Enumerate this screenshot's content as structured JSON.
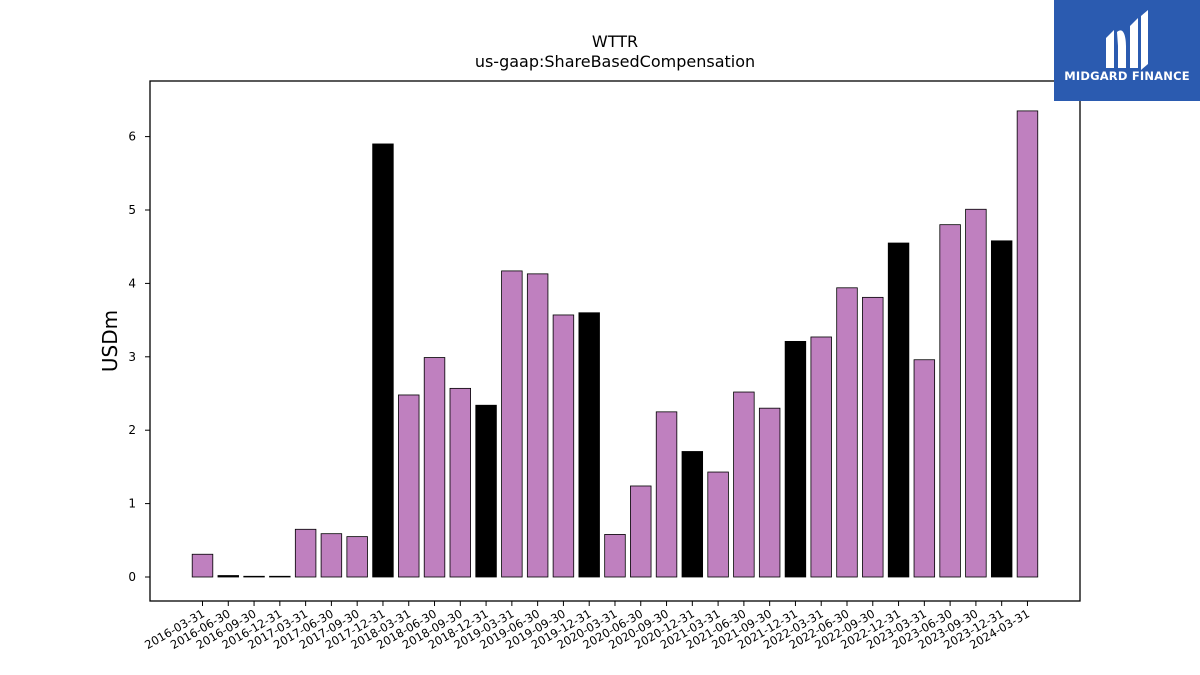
{
  "chart_data": {
    "type": "bar",
    "title": "WTTR",
    "subtitle": "us-gaap:ShareBasedCompensation",
    "xlabel": "",
    "ylabel": "USDm",
    "ylim": [
      -0.32,
      6.67
    ],
    "yticks": [
      0,
      1,
      2,
      3,
      4,
      5,
      6
    ],
    "grid": false,
    "colors": {
      "quarter": "#bf80bf",
      "year_end": "#000000",
      "edge": "#000000"
    },
    "categories": [
      "2016-03-31",
      "2016-06-30",
      "2016-09-30",
      "2016-12-31",
      "2017-03-31",
      "2017-06-30",
      "2017-09-30",
      "2017-12-31",
      "2018-03-31",
      "2018-06-30",
      "2018-09-30",
      "2018-12-31",
      "2019-03-31",
      "2019-06-30",
      "2019-09-30",
      "2019-12-31",
      "2020-03-31",
      "2020-06-30",
      "2020-09-30",
      "2020-12-31",
      "2021-03-31",
      "2021-06-30",
      "2021-09-30",
      "2021-12-31",
      "2022-03-31",
      "2022-06-30",
      "2022-09-30",
      "2022-12-31",
      "2023-03-31",
      "2023-06-30",
      "2023-09-30",
      "2023-12-31",
      "2024-03-31"
    ],
    "values": [
      0.31,
      0.02,
      0.01,
      0.01,
      0.65,
      0.59,
      0.55,
      5.9,
      2.48,
      2.99,
      2.57,
      2.34,
      4.17,
      4.13,
      3.57,
      3.6,
      0.58,
      1.24,
      2.25,
      1.71,
      1.43,
      2.52,
      2.3,
      3.21,
      3.27,
      3.94,
      3.81,
      4.55,
      2.96,
      4.8,
      5.01,
      4.58,
      6.35
    ],
    "highlight": [
      false,
      true,
      false,
      false,
      false,
      false,
      false,
      true,
      false,
      false,
      false,
      true,
      false,
      false,
      false,
      true,
      false,
      false,
      false,
      true,
      false,
      false,
      false,
      true,
      false,
      false,
      false,
      true,
      false,
      false,
      false,
      true,
      false
    ]
  },
  "logo": {
    "text": "MIDGARD FINANCE"
  }
}
